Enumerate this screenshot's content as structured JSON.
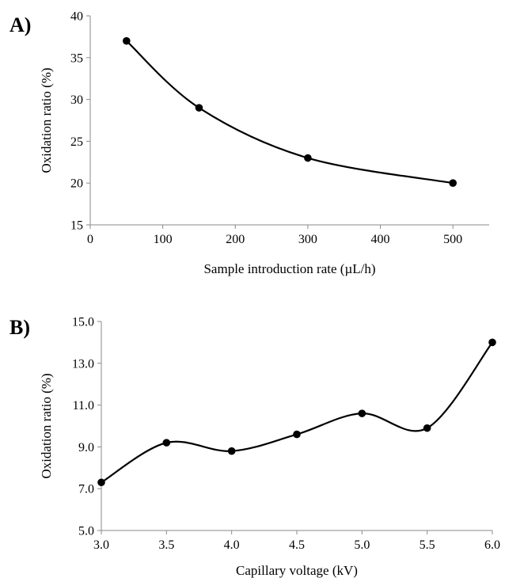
{
  "chart_data": [
    {
      "type": "line",
      "panel_label": "A)",
      "title": "",
      "xlabel": "Sample introduction rate (µL/h)",
      "ylabel": "Oxidation ratio (%)",
      "xlim": [
        0,
        550
      ],
      "ylim": [
        15,
        40
      ],
      "xticks": [
        0,
        100,
        200,
        300,
        400,
        500
      ],
      "yticks": [
        15,
        20,
        25,
        30,
        35,
        40
      ],
      "tick_decimals": 0,
      "smooth": true,
      "grid": false,
      "series": [
        {
          "x": [
            50,
            150,
            300,
            500
          ],
          "y": [
            37,
            29,
            23,
            20
          ]
        }
      ],
      "line_color": "#000000",
      "marker_color": "#000000"
    },
    {
      "type": "line",
      "panel_label": "B)",
      "title": "",
      "xlabel": "Capillary voltage (kV)",
      "ylabel": "Oxidation ratio (%)",
      "xlim": [
        3.0,
        6.0
      ],
      "ylim": [
        5.0,
        15.0
      ],
      "xticks": [
        3.0,
        3.5,
        4.0,
        4.5,
        5.0,
        5.5,
        6.0
      ],
      "yticks": [
        5.0,
        7.0,
        9.0,
        11.0,
        13.0,
        15.0
      ],
      "tick_decimals": 1,
      "smooth": true,
      "grid": false,
      "series": [
        {
          "x": [
            3.0,
            3.5,
            4.0,
            4.5,
            5.0,
            5.5,
            6.0
          ],
          "y": [
            7.3,
            9.2,
            8.8,
            9.6,
            10.6,
            9.9,
            14.0
          ]
        }
      ],
      "line_color": "#000000",
      "marker_color": "#000000"
    }
  ]
}
